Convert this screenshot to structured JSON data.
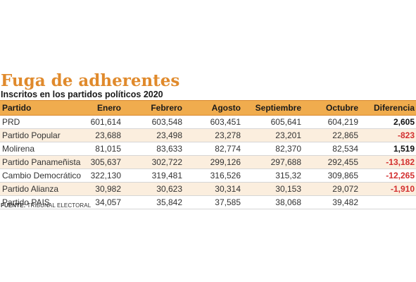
{
  "title": "Fuga de adherentes",
  "subtitle": "Inscritos en los partidos políticos 2020",
  "colors": {
    "title": "#e08a2c",
    "header_bg": "#f0ac4e",
    "alt_row_bg": "#fbeede",
    "negative": "#d32f2f",
    "positive": "#111111"
  },
  "chart_data": {
    "type": "table",
    "columns": [
      "Partido",
      "Enero",
      "Febrero",
      "Agosto",
      "Septiembre",
      "Octubre",
      "Diferencia"
    ],
    "rows": [
      [
        "PRD",
        "601,614",
        "603,548",
        "603,451",
        "605,641",
        "604,219",
        "2,605"
      ],
      [
        "Partido Popular",
        "23,688",
        "23,498",
        "23,278",
        "23,201",
        "22,865",
        "-823"
      ],
      [
        "Molirena",
        "81,015",
        "83,633",
        "82,774",
        "82,370",
        "82,534",
        "1,519"
      ],
      [
        "Partido Panameñista",
        "305,637",
        "302,722",
        "299,126",
        "297,688",
        "292,455",
        "-13,182"
      ],
      [
        "Cambio Democrático",
        "322,130",
        "319,481",
        "316,526",
        "315,32",
        "309,865",
        "-12,265"
      ],
      [
        "Partido Alianza",
        "30,982",
        "30,623",
        "30,314",
        "30,153",
        "29,072",
        "-1,910"
      ],
      [
        "Partido PAIS",
        "34,057",
        "35,842",
        "37,585",
        "38,068",
        "39,482",
        ""
      ]
    ]
  },
  "footer": {
    "label": "FUENTE:",
    "text": " TRIBUNAL ELECTORAL"
  }
}
